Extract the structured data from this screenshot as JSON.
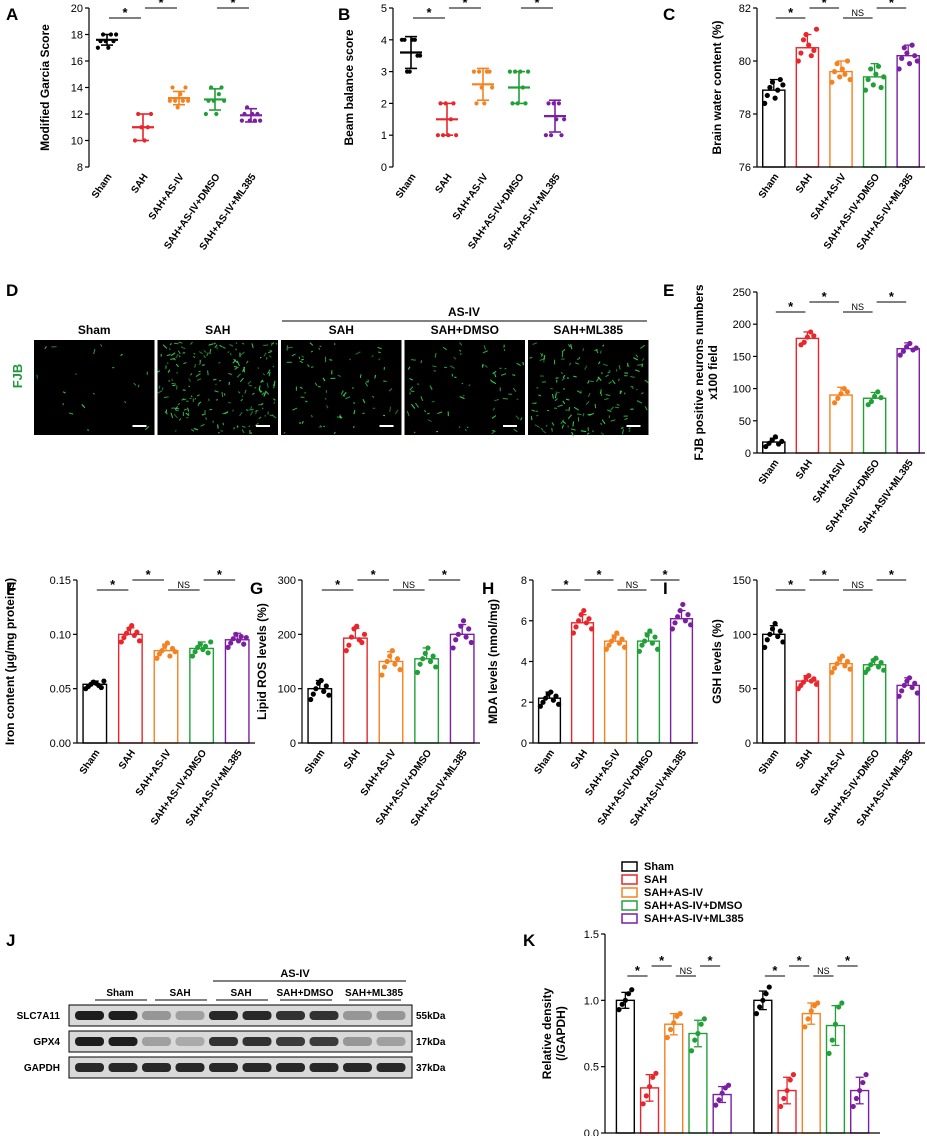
{
  "colors": {
    "Sham": "#000000",
    "SAH": "#e8262b",
    "SAH+AS-IV": "#f58220",
    "SAH+AS-IV+DMSO": "#22a038",
    "SAH+AS-IV+ML385": "#7b1fa2",
    "fjb_green": "#1f9a3a"
  },
  "chart_data": [
    {
      "id": "A",
      "panel_label": "A",
      "type": "scatter",
      "ylabel": "Modified Garcia Score",
      "categories": [
        "Sham",
        "SAH",
        "SAH+AS-IV",
        "SAH+AS-IV+DMSO",
        "SAH+AS-IV+ML385"
      ],
      "ylim": [
        8,
        20
      ],
      "yticks": [
        "8",
        "10",
        "12",
        "14",
        "16",
        "18",
        "20"
      ],
      "means": [
        17.6,
        11.0,
        13.2,
        13.1,
        11.9
      ],
      "sd": [
        0.4,
        1.0,
        0.5,
        0.8,
        0.5
      ],
      "points": [
        [
          17,
          17.5,
          18,
          17.5,
          17,
          18,
          17.5,
          18
        ],
        [
          10,
          12,
          11,
          10,
          11,
          12
        ],
        [
          13,
          14,
          13,
          12.5,
          13.5,
          13,
          14,
          13
        ],
        [
          12,
          13,
          14,
          13,
          12,
          13.5,
          14,
          13
        ],
        [
          11.5,
          12,
          12.5,
          11.5,
          12,
          11.5,
          12,
          11.5
        ]
      ],
      "sig": [
        {
          "from": 0,
          "to": 1,
          "label": "*",
          "tier": 0
        },
        {
          "from": 1,
          "to": 2,
          "label": "*",
          "tier": 1
        },
        {
          "from": 2,
          "to": 3,
          "label": "NS",
          "tier": 2
        },
        {
          "from": 3,
          "to": 4,
          "label": "*",
          "tier": 1
        }
      ]
    },
    {
      "id": "B",
      "panel_label": "B",
      "type": "scatter",
      "ylabel": "Beam balance score",
      "categories": [
        "Sham",
        "SAH",
        "SAH+AS-IV",
        "SAH+AS-IV+DMSO",
        "SAH+AS-IV+ML385"
      ],
      "ylim": [
        0,
        5
      ],
      "yticks": [
        "0",
        "1",
        "2",
        "3",
        "4",
        "5"
      ],
      "means": [
        3.6,
        1.5,
        2.6,
        2.5,
        1.6
      ],
      "sd": [
        0.5,
        0.5,
        0.5,
        0.5,
        0.5
      ],
      "points": [
        [
          4,
          4,
          3,
          3,
          4,
          4,
          3.5,
          3.5
        ],
        [
          1,
          2,
          1,
          2,
          1,
          1.5,
          2,
          1
        ],
        [
          3,
          2,
          3,
          2.5,
          2,
          3,
          3,
          2.5
        ],
        [
          3,
          2,
          3,
          2,
          3,
          2.5,
          2,
          3
        ],
        [
          1,
          2,
          1,
          2,
          1.5,
          2,
          1,
          1.5
        ]
      ],
      "sig": [
        {
          "from": 0,
          "to": 1,
          "label": "*",
          "tier": 0
        },
        {
          "from": 1,
          "to": 2,
          "label": "*",
          "tier": 1
        },
        {
          "from": 2,
          "to": 3,
          "label": "NS",
          "tier": 2
        },
        {
          "from": 3,
          "to": 4,
          "label": "*",
          "tier": 1
        }
      ]
    },
    {
      "id": "C",
      "panel_label": "C",
      "type": "bar",
      "ylabel": "Brain water content (%)",
      "categories": [
        "Sham",
        "SAH",
        "SAH+AS-IV",
        "SAH+AS-IV+DMSO",
        "SAH+AS-IV+ML385"
      ],
      "ylim": [
        76,
        82
      ],
      "yticks": [
        "76",
        "78",
        "80",
        "82"
      ],
      "means": [
        78.9,
        80.5,
        79.6,
        79.4,
        80.2
      ],
      "sd": [
        0.4,
        0.5,
        0.4,
        0.5,
        0.4
      ],
      "points": [
        [
          78.4,
          78.7,
          79.0,
          79.2,
          78.6,
          78.9,
          79.3,
          79.1
        ],
        [
          80.0,
          80.3,
          80.8,
          81.0,
          80.6,
          80.2,
          80.4,
          81.2
        ],
        [
          79.2,
          79.6,
          79.9,
          79.4,
          79.7,
          79.5,
          80.0,
          79.3
        ],
        [
          78.9,
          79.3,
          79.7,
          79.1,
          79.5,
          79.8,
          79.0,
          79.4
        ],
        [
          79.7,
          80.1,
          80.5,
          80.3,
          79.9,
          80.6,
          80.2,
          80.0
        ]
      ],
      "sig": [
        {
          "from": 0,
          "to": 1,
          "label": "*",
          "tier": 1
        },
        {
          "from": 1,
          "to": 2,
          "label": "*",
          "tier": 2
        },
        {
          "from": 2,
          "to": 3,
          "label": "NS",
          "tier": 1
        },
        {
          "from": 3,
          "to": 4,
          "label": "*",
          "tier": 2
        }
      ]
    },
    {
      "id": "E",
      "panel_label": "E",
      "type": "bar",
      "ylabel": [
        "FJB positive neurons numbers",
        "x100 field"
      ],
      "categories": [
        "Sham",
        "SAH",
        "SAH+ASIV",
        "SAH+ASIV+DMSO",
        "SAH+ASIV+ML385"
      ],
      "ylim": [
        0,
        250
      ],
      "yticks": [
        "0",
        "50",
        "100",
        "150",
        "200",
        "250"
      ],
      "means": [
        17,
        178,
        90,
        85,
        162
      ],
      "sd": [
        6,
        10,
        12,
        9,
        9
      ],
      "points": [
        [
          10,
          15,
          20,
          25,
          14,
          18
        ],
        [
          168,
          172,
          180,
          188,
          182
        ],
        [
          78,
          85,
          92,
          100,
          95
        ],
        [
          75,
          80,
          88,
          95,
          86
        ],
        [
          152,
          158,
          165,
          170,
          160,
          163
        ]
      ],
      "sig": [
        {
          "from": 0,
          "to": 1,
          "label": "*",
          "tier": 1
        },
        {
          "from": 1,
          "to": 2,
          "label": "*",
          "tier": 2
        },
        {
          "from": 2,
          "to": 3,
          "label": "NS",
          "tier": 1
        },
        {
          "from": 3,
          "to": 4,
          "label": "*",
          "tier": 2
        }
      ]
    },
    {
      "id": "F",
      "panel_label": "F",
      "type": "bar",
      "ylabel": "Iron content (μg/mg proteins)",
      "categories": [
        "Sham",
        "SAH",
        "SAH+AS-IV",
        "SAH+AS-IV+DMSO",
        "SAH+AS-IV+ML385"
      ],
      "ylim": [
        0,
        0.15
      ],
      "yticks": [
        "0.00",
        "0.05",
        "0.10",
        "0.15"
      ],
      "means": [
        0.054,
        0.1,
        0.085,
        0.087,
        0.095
      ],
      "sd": [
        0.003,
        0.006,
        0.006,
        0.006,
        0.006
      ],
      "points": [
        [
          0.05,
          0.052,
          0.054,
          0.056,
          0.055,
          0.053,
          0.051,
          0.057
        ],
        [
          0.093,
          0.097,
          0.101,
          0.105,
          0.108,
          0.099,
          0.102,
          0.094
        ],
        [
          0.078,
          0.082,
          0.085,
          0.089,
          0.092,
          0.08,
          0.087,
          0.084
        ],
        [
          0.08,
          0.084,
          0.088,
          0.091,
          0.086,
          0.089,
          0.083,
          0.093
        ],
        [
          0.088,
          0.092,
          0.096,
          0.1,
          0.094,
          0.098,
          0.091,
          0.097
        ]
      ],
      "sig": [
        {
          "from": 0,
          "to": 1,
          "label": "*",
          "tier": 1
        },
        {
          "from": 1,
          "to": 2,
          "label": "*",
          "tier": 2
        },
        {
          "from": 2,
          "to": 3,
          "label": "NS",
          "tier": 1
        },
        {
          "from": 3,
          "to": 4,
          "label": "*",
          "tier": 2
        }
      ]
    },
    {
      "id": "G",
      "panel_label": "G",
      "type": "bar",
      "ylabel": "Lipid ROS levels (%)",
      "categories": [
        "Sham",
        "SAH",
        "SAH+AS-IV",
        "SAH+AS-IV+DMSO",
        "SAH+AS-IV+ML385"
      ],
      "ylim": [
        0,
        300
      ],
      "yticks": [
        "0",
        "100",
        "200",
        "300"
      ],
      "means": [
        100,
        193,
        150,
        155,
        200
      ],
      "sd": [
        15,
        18,
        18,
        20,
        18
      ],
      "points": [
        [
          80,
          90,
          100,
          110,
          115,
          95,
          105,
          88
        ],
        [
          170,
          180,
          195,
          210,
          215,
          190,
          185,
          200
        ],
        [
          125,
          140,
          150,
          160,
          170,
          145,
          155,
          135
        ],
        [
          130,
          145,
          155,
          165,
          175,
          150,
          160,
          140
        ],
        [
          175,
          190,
          200,
          215,
          225,
          195,
          210,
          185
        ]
      ],
      "sig": [
        {
          "from": 0,
          "to": 1,
          "label": "*",
          "tier": 1
        },
        {
          "from": 1,
          "to": 2,
          "label": "*",
          "tier": 2
        },
        {
          "from": 2,
          "to": 3,
          "label": "NS",
          "tier": 1
        },
        {
          "from": 3,
          "to": 4,
          "label": "*",
          "tier": 2
        }
      ]
    },
    {
      "id": "H",
      "panel_label": "H",
      "type": "bar",
      "ylabel": "MDA levels (nmol/mg)",
      "categories": [
        "Sham",
        "SAH",
        "SAH+AS-IV",
        "SAH+AS-IV+DMSO",
        "SAH+AS-IV+ML385"
      ],
      "ylim": [
        0,
        8
      ],
      "yticks": [
        "0",
        "2",
        "4",
        "6",
        "8"
      ],
      "means": [
        2.2,
        5.9,
        5.0,
        5.0,
        6.1
      ],
      "sd": [
        0.3,
        0.4,
        0.3,
        0.4,
        0.4
      ],
      "points": [
        [
          1.8,
          2.0,
          2.2,
          2.4,
          2.5,
          2.1,
          2.3,
          1.9
        ],
        [
          5.4,
          5.7,
          6.0,
          6.3,
          6.5,
          5.9,
          6.1,
          5.6
        ],
        [
          4.6,
          4.8,
          5.0,
          5.2,
          5.4,
          4.9,
          5.1,
          4.7
        ],
        [
          4.5,
          4.8,
          5.0,
          5.3,
          5.5,
          4.9,
          5.2,
          4.6
        ],
        [
          5.6,
          5.9,
          6.2,
          6.5,
          6.8,
          6.0,
          6.3,
          5.8
        ]
      ],
      "sig": [
        {
          "from": 0,
          "to": 1,
          "label": "*",
          "tier": 1
        },
        {
          "from": 1,
          "to": 2,
          "label": "*",
          "tier": 2
        },
        {
          "from": 2,
          "to": 3,
          "label": "NS",
          "tier": 1
        },
        {
          "from": 3,
          "to": 4,
          "label": "*",
          "tier": 2
        }
      ]
    },
    {
      "id": "I",
      "panel_label": "I",
      "type": "bar",
      "ylabel": "GSH levels (%)",
      "categories": [
        "Sham",
        "SAH",
        "SAH+AS-IV",
        "SAH+AS-IV+DMSO",
        "SAH+AS-IV+ML385"
      ],
      "ylim": [
        0,
        150
      ],
      "yticks": [
        "0",
        "50",
        "100",
        "150"
      ],
      "means": [
        100,
        57,
        73,
        72,
        53
      ],
      "sd": [
        8,
        5,
        6,
        5,
        7
      ],
      "points": [
        [
          88,
          95,
          100,
          105,
          110,
          98,
          103,
          93
        ],
        [
          50,
          53,
          56,
          60,
          62,
          57,
          59,
          54
        ],
        [
          65,
          69,
          73,
          77,
          80,
          71,
          75,
          68
        ],
        [
          65,
          68,
          72,
          76,
          78,
          70,
          74,
          67
        ],
        [
          43,
          48,
          53,
          57,
          60,
          51,
          55,
          46
        ]
      ],
      "sig": [
        {
          "from": 0,
          "to": 1,
          "label": "*",
          "tier": 1
        },
        {
          "from": 1,
          "to": 2,
          "label": "*",
          "tier": 2
        },
        {
          "from": 2,
          "to": 3,
          "label": "NS",
          "tier": 1
        },
        {
          "from": 3,
          "to": 4,
          "label": "*",
          "tier": 2
        }
      ]
    },
    {
      "id": "K",
      "panel_label": "K",
      "type": "bar",
      "ylabel": [
        "Relative density",
        "(/GAPDH)"
      ],
      "groups": [
        "SLC7A11",
        "GPX4"
      ],
      "series_names": [
        "Sham",
        "SAH",
        "SAH+AS-IV",
        "SAH+AS-IV+DMSO",
        "SAH+AS-IV+ML385"
      ],
      "legend": [
        "Sham",
        "SAH",
        "SAH+AS-IV",
        "SAH+AS-IV+DMSO",
        "SAH+AS-IV+ML385"
      ],
      "ylim": [
        0,
        1.5
      ],
      "yticks": [
        "0.0",
        "0.5",
        "1.0",
        "1.5"
      ],
      "means": [
        [
          1.0,
          0.34,
          0.82,
          0.75,
          0.29
        ],
        [
          1.0,
          0.32,
          0.9,
          0.81,
          0.32
        ]
      ],
      "sd": [
        [
          0.06,
          0.1,
          0.08,
          0.1,
          0.06
        ],
        [
          0.07,
          0.1,
          0.08,
          0.15,
          0.1
        ]
      ],
      "points": [
        [
          [
            0.93,
            0.97,
            1.0,
            1.05,
            1.08
          ],
          [
            0.22,
            0.28,
            0.35,
            0.42,
            0.45
          ],
          [
            0.72,
            0.78,
            0.83,
            0.88,
            0.9
          ],
          [
            0.62,
            0.7,
            0.75,
            0.82,
            0.86
          ],
          [
            0.21,
            0.25,
            0.3,
            0.34,
            0.36
          ]
        ],
        [
          [
            0.9,
            0.95,
            1.0,
            1.05,
            1.1
          ],
          [
            0.2,
            0.26,
            0.32,
            0.4,
            0.44
          ],
          [
            0.8,
            0.86,
            0.92,
            0.96,
            0.98
          ],
          [
            0.6,
            0.7,
            0.82,
            0.95,
            0.98
          ],
          [
            0.2,
            0.26,
            0.32,
            0.38,
            0.44
          ]
        ]
      ],
      "sig": [
        {
          "group": 0,
          "from": 0,
          "to": 1,
          "label": "*",
          "tier": 0
        },
        {
          "group": 0,
          "from": 1,
          "to": 2,
          "label": "*",
          "tier": 1
        },
        {
          "group": 0,
          "from": 2,
          "to": 3,
          "label": "NS",
          "tier": 0
        },
        {
          "group": 0,
          "from": 3,
          "to": 4,
          "label": "*",
          "tier": 1
        },
        {
          "group": 1,
          "from": 0,
          "to": 1,
          "label": "*",
          "tier": 0
        },
        {
          "group": 1,
          "from": 1,
          "to": 2,
          "label": "*",
          "tier": 1
        },
        {
          "group": 1,
          "from": 2,
          "to": 3,
          "label": "NS",
          "tier": 0
        },
        {
          "group": 1,
          "from": 3,
          "to": 4,
          "label": "*",
          "tier": 1
        }
      ]
    }
  ],
  "panel_D": {
    "label": "D",
    "stain": "FJB",
    "group_header": "AS-IV",
    "panels": [
      "Sham",
      "SAH",
      "SAH",
      "SAH+DMSO",
      "SAH+ML385"
    ],
    "density": [
      0.05,
      0.85,
      0.3,
      0.28,
      0.6
    ]
  },
  "panel_J": {
    "label": "J",
    "group_header": "AS-IV",
    "lanes": [
      "Sham",
      "SAH",
      "SAH",
      "SAH+DMSO",
      "SAH+ML385"
    ],
    "rows": [
      {
        "protein": "SLC7A11",
        "kda": "55kDa",
        "intensity": [
          0.95,
          0.95,
          0.35,
          0.3,
          0.9,
          0.9,
          0.85,
          0.85,
          0.35,
          0.35
        ]
      },
      {
        "protein": "GPX4",
        "kda": "17kDa",
        "intensity": [
          0.95,
          0.95,
          0.3,
          0.25,
          0.85,
          0.85,
          0.8,
          0.8,
          0.35,
          0.3
        ]
      },
      {
        "protein": "GAPDH",
        "kda": "37kDa",
        "intensity": [
          0.9,
          0.9,
          0.9,
          0.9,
          0.9,
          0.9,
          0.9,
          0.9,
          0.9,
          0.9
        ]
      }
    ]
  }
}
